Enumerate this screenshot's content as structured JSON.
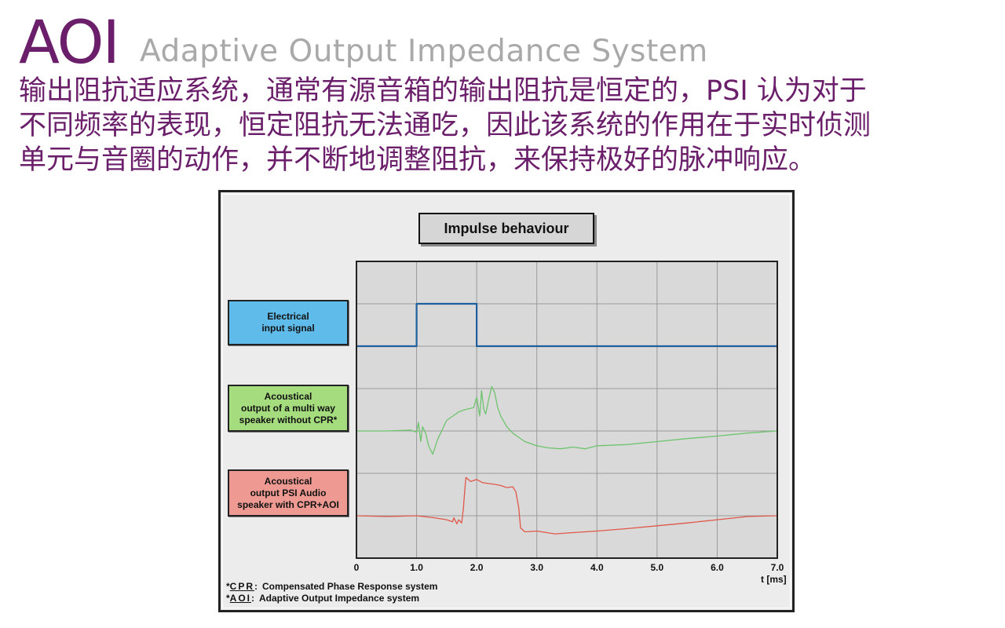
{
  "header": {
    "acronym": "AOI",
    "subtitle": "Adaptive Output Impedance System",
    "description_lines": [
      "输出阻抗适应系统，通常有源音箱的输出阻抗是恒定的，PSI 认为对于",
      "不同频率的表现，恒定阻抗无法通吃，因此该系统的作用在于实时侦测",
      "单元与音圈的动作，并不断地调整阻抗，来保持极好的脉冲响应。"
    ]
  },
  "colors": {
    "title_purple": "#6b1f6b",
    "subtitle_gray": "#a9a9a9",
    "electrical": "#1f5f9e",
    "multiway": "#6ec46e",
    "psi": "#e0584a"
  },
  "chart_data": {
    "type": "line",
    "title": "Impulse behaviour",
    "xlabel": "t [ms]",
    "ylabel": "",
    "xlim": [
      0,
      7
    ],
    "x_ticks": [
      "0",
      "1.0",
      "2.0",
      "3.0",
      "4.0",
      "5.0",
      "6.0",
      "7.0"
    ],
    "grid": true,
    "series": [
      {
        "name": "Electrical\ninput signal",
        "color": "#1f5f9e",
        "lane": 0,
        "x": [
          0,
          1.0,
          1.0,
          2.0,
          2.0,
          7.0
        ],
        "y": [
          0,
          0,
          1,
          1,
          0,
          0
        ]
      },
      {
        "name": "Acoustical\noutput of a multi way\nspeaker without CPR*",
        "color": "#6ec46e",
        "lane": 1,
        "x": [
          0,
          0.5,
          0.9,
          1.0,
          1.03,
          1.07,
          1.1,
          1.15,
          1.2,
          1.27,
          1.35,
          1.4,
          1.45,
          1.5,
          1.6,
          1.7,
          1.8,
          1.95,
          2.0,
          2.05,
          2.08,
          2.12,
          2.15,
          2.2,
          2.25,
          2.3,
          2.35,
          2.4,
          2.5,
          2.6,
          2.7,
          2.8,
          3.0,
          3.2,
          3.4,
          3.6,
          3.8,
          4.0,
          4.5,
          5.0,
          5.5,
          6.0,
          6.5,
          7.0
        ],
        "y": [
          0,
          0,
          0.02,
          -0.03,
          0.2,
          -0.25,
          0.1,
          -0.05,
          -0.35,
          -0.55,
          -0.2,
          -0.05,
          0.1,
          0.25,
          0.35,
          0.45,
          0.5,
          0.55,
          0.8,
          0.35,
          0.95,
          0.5,
          0.4,
          0.75,
          1.05,
          0.9,
          0.55,
          0.35,
          0.1,
          -0.05,
          -0.15,
          -0.25,
          -0.35,
          -0.4,
          -0.42,
          -0.38,
          -0.42,
          -0.35,
          -0.32,
          -0.25,
          -0.18,
          -0.12,
          -0.05,
          0.0
        ]
      },
      {
        "name": "Acoustical\noutput PSI Audio\nspeaker with CPR+AOI",
        "color": "#e0584a",
        "lane": 2,
        "x": [
          0,
          0.5,
          1.0,
          1.3,
          1.5,
          1.6,
          1.62,
          1.67,
          1.7,
          1.75,
          1.78,
          1.8,
          1.82,
          1.9,
          2.0,
          2.1,
          2.2,
          2.3,
          2.4,
          2.5,
          2.6,
          2.65,
          2.7,
          2.73,
          2.8,
          3.0,
          3.3,
          3.6,
          4.0,
          4.5,
          5.0,
          5.5,
          6.0,
          6.5,
          7.0
        ],
        "y": [
          0,
          -0.02,
          0.0,
          -0.05,
          -0.1,
          -0.15,
          -0.05,
          -0.2,
          -0.1,
          -0.18,
          0.2,
          0.6,
          0.95,
          0.85,
          0.9,
          0.82,
          0.8,
          0.78,
          0.75,
          0.7,
          0.72,
          0.6,
          0.2,
          -0.3,
          -0.4,
          -0.38,
          -0.45,
          -0.42,
          -0.38,
          -0.32,
          -0.25,
          -0.18,
          -0.1,
          -0.02,
          0.0
        ]
      }
    ]
  },
  "footnotes": [
    {
      "key": "CPR",
      "text": "Compensated Phase Response system",
      "prefix": "*",
      "sep": ":"
    },
    {
      "key": "AOI",
      "text": "Adaptive Output Impedance system",
      "prefix": "*",
      "sep": ":"
    }
  ]
}
